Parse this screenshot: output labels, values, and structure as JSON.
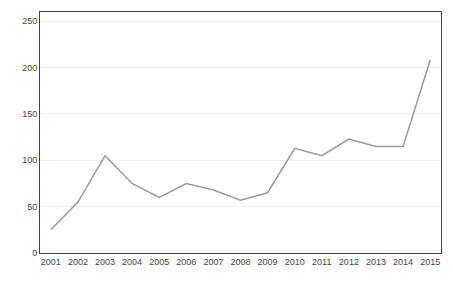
{
  "chart_data": {
    "type": "line",
    "x": [
      2001,
      2002,
      2003,
      2004,
      2005,
      2006,
      2007,
      2008,
      2009,
      2010,
      2011,
      2012,
      2013,
      2014,
      2015
    ],
    "values": [
      25,
      55,
      105,
      75,
      60,
      75,
      68,
      57,
      65,
      113,
      105,
      123,
      115,
      115,
      208
    ],
    "color": "#999999",
    "xlim": [
      2000.6,
      2015.4
    ],
    "xticks": [
      2001,
      2002,
      2003,
      2004,
      2005,
      2006,
      2007,
      2008,
      2009,
      2010,
      2011,
      2012,
      2013,
      2014,
      2015
    ],
    "ylim": [
      0,
      260
    ],
    "yticks": [
      0,
      50,
      100,
      150,
      200,
      250
    ],
    "grid": "y"
  }
}
